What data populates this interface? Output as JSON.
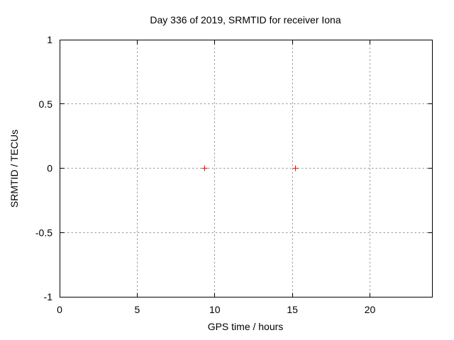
{
  "chart_data": {
    "type": "scatter",
    "title": "Day 336 of 2019, SRMTID for receiver Iona",
    "xlabel": "GPS time / hours",
    "ylabel": "SRMTID / TECUs",
    "xlim": [
      0,
      24
    ],
    "ylim": [
      -1,
      1
    ],
    "xticks": [
      0,
      5,
      10,
      15,
      20
    ],
    "yticks": [
      -1,
      -0.5,
      0,
      0.5,
      1
    ],
    "grid": true,
    "grid_style": "dashed",
    "legend": "none",
    "marker": "plus",
    "series": [
      {
        "color": "#ff0000",
        "points": [
          [
            9.33,
            0
          ],
          [
            15.22,
            0
          ]
        ]
      }
    ],
    "colors": {
      "background": "#ffffff",
      "border": "#000000",
      "grid": "#9c9c9c",
      "text": "#000000",
      "marker": "#ff0000"
    }
  }
}
